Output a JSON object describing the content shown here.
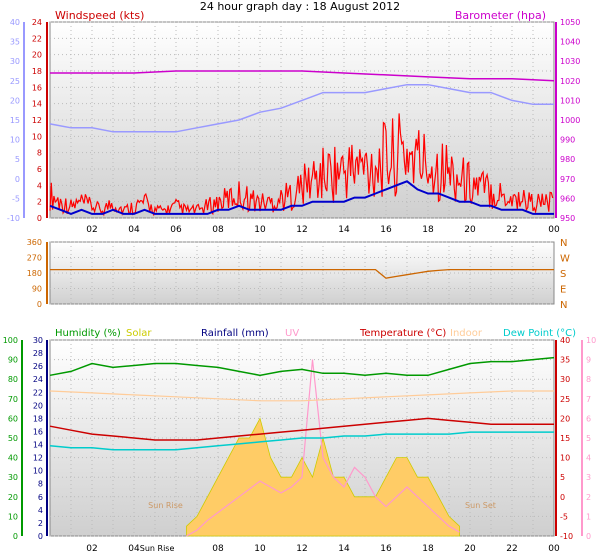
{
  "title": "24 hour graph day : 18 August 2012",
  "colors": {
    "windspeed": "#ff0000",
    "windavg": "#0000cc",
    "barometer": "#cc00cc",
    "baro_axis": "#cc00cc",
    "wind_axis": "#cc0000",
    "left_axis": "#9999ff",
    "direction": "#cc6600",
    "humidity": "#009900",
    "solar": "#cccc00",
    "rainfall": "#000080",
    "uv": "#ff99cc",
    "temperature": "#cc0000",
    "indoor": "#ffcc99",
    "dewpoint": "#00cccc",
    "solar_fill": "#ffcc66"
  },
  "x_ticks": [
    "02",
    "04",
    "06",
    "08",
    "10",
    "12",
    "14",
    "16",
    "18",
    "20",
    "22",
    "00"
  ],
  "chart_data": [
    {
      "type": "line",
      "title": "",
      "left_label": "Windspeed (kts)",
      "right_label": "Barometer (hpa)",
      "xlabel": "",
      "x_range": [
        0,
        24
      ],
      "y_left_ticks": [
        0,
        2,
        4,
        6,
        8,
        10,
        12,
        14,
        16,
        18,
        20,
        22,
        24
      ],
      "y_outer_ticks": [
        -10,
        -5,
        0,
        5,
        10,
        15,
        20,
        25,
        30,
        35,
        40
      ],
      "y_right_ticks": [
        950,
        960,
        970,
        980,
        990,
        1000,
        1010,
        1020,
        1030,
        1040,
        1050
      ],
      "ylim_wind": [
        0,
        24
      ],
      "ylim_baro": [
        950,
        1050
      ],
      "grid": true,
      "series": [
        {
          "name": "Windspeed (kts)",
          "x": [
            0,
            0.5,
            1,
            1.5,
            2,
            2.5,
            3,
            3.5,
            4,
            4.5,
            5,
            5.5,
            6,
            6.5,
            7,
            7.5,
            8,
            8.5,
            9,
            9.5,
            10,
            10.5,
            11,
            11.5,
            12,
            12.5,
            13,
            13.5,
            14,
            14.5,
            15,
            15.5,
            16,
            16.5,
            17,
            17.5,
            18,
            18.5,
            19,
            19.5,
            20,
            20.5,
            21,
            21.5,
            22,
            22.5,
            23,
            23.5,
            24
          ],
          "values": [
            3,
            2,
            1.5,
            2,
            1.5,
            1,
            2,
            1,
            1.5,
            2,
            1,
            1,
            1.5,
            1,
            1,
            1.5,
            2,
            2.5,
            3,
            2.5,
            2,
            2,
            2.5,
            3,
            4,
            5,
            5.5,
            6,
            6,
            6.5,
            6.5,
            7,
            7.5,
            8,
            8.5,
            7.5,
            7,
            6.5,
            6,
            5,
            4.5,
            4,
            3.5,
            3,
            2.5,
            2.5,
            2,
            2,
            2
          ]
        },
        {
          "name": "Windspeed avg",
          "x": [
            0,
            0.5,
            1,
            1.5,
            2,
            2.5,
            3,
            3.5,
            4,
            4.5,
            5,
            5.5,
            6,
            6.5,
            7,
            7.5,
            8,
            8.5,
            9,
            9.5,
            10,
            10.5,
            11,
            11.5,
            12,
            12.5,
            13,
            13.5,
            14,
            14.5,
            15,
            15.5,
            16,
            16.5,
            17,
            17.5,
            18,
            18.5,
            19,
            19.5,
            20,
            20.5,
            21,
            21.5,
            22,
            22.5,
            23,
            23.5,
            24
          ],
          "values": [
            1.5,
            1,
            0.5,
            1,
            0.5,
            0.5,
            1,
            0.5,
            0.5,
            1,
            0.5,
            0.5,
            0.5,
            0.5,
            0.5,
            0.5,
            1,
            1,
            1.5,
            1,
            1,
            1,
            1,
            1.5,
            1.5,
            2,
            2,
            2,
            2,
            2.5,
            2.5,
            3,
            3.5,
            4,
            4.5,
            3.5,
            3,
            3,
            2.5,
            2,
            2,
            1.5,
            1.5,
            1,
            1,
            1,
            0.5,
            0.5,
            0.5
          ]
        },
        {
          "name": "Barometer (hpa)",
          "x": [
            0,
            2,
            4,
            6,
            8,
            10,
            12,
            14,
            16,
            18,
            20,
            22,
            24
          ],
          "values": [
            1024,
            1024,
            1024,
            1025,
            1025,
            1025,
            1025,
            1024,
            1023,
            1022,
            1021,
            1021,
            1020
          ]
        },
        {
          "name": "Left axis trace",
          "x": [
            0,
            1,
            2,
            3,
            4,
            5,
            6,
            7,
            8,
            9,
            10,
            11,
            12,
            13,
            14,
            15,
            16,
            17,
            18,
            19,
            20,
            21,
            22,
            23,
            24
          ],
          "values": [
            14,
            13,
            13,
            12,
            12,
            12,
            12,
            13,
            14,
            15,
            17,
            18,
            20,
            22,
            22,
            22,
            23,
            24,
            24,
            23,
            22,
            22,
            20,
            19,
            19
          ]
        }
      ]
    },
    {
      "type": "line",
      "title": "",
      "xlabel": "",
      "x_range": [
        0,
        24
      ],
      "y_left_ticks": [
        0,
        90,
        180,
        270,
        360
      ],
      "right_labels": [
        "N",
        "W",
        "S",
        "E",
        "N"
      ],
      "ylim": [
        0,
        360
      ],
      "grid": true,
      "series": [
        {
          "name": "Wind direction",
          "x": [
            0,
            2,
            4,
            6,
            8,
            10,
            12,
            14,
            15.5,
            16,
            16.5,
            17,
            17.5,
            18,
            18.5,
            19,
            20,
            22,
            24
          ],
          "values": [
            200,
            200,
            200,
            200,
            200,
            200,
            200,
            200,
            200,
            150,
            160,
            170,
            180,
            190,
            195,
            200,
            200,
            200,
            200
          ]
        }
      ]
    },
    {
      "type": "line",
      "title": "",
      "xlabel": "",
      "x_range": [
        0,
        24
      ],
      "legend": [
        "Humidity (%)",
        "Solar",
        "Rainfall (mm)",
        "UV",
        "Temperature (°C)",
        "Indoor",
        "Dew Point (°C)"
      ],
      "y_humidity_ticks": [
        0,
        10,
        20,
        30,
        40,
        50,
        60,
        70,
        80,
        90,
        100
      ],
      "y_rain_ticks": [
        0,
        2,
        4,
        6,
        8,
        10,
        12,
        14,
        16,
        18,
        20,
        22,
        24,
        26,
        28,
        30
      ],
      "y_temp_ticks": [
        -10,
        -5,
        0,
        5,
        10,
        15,
        20,
        25,
        30,
        35,
        40
      ],
      "y_uv_ticks": [
        0,
        1,
        2,
        3,
        4,
        5,
        6,
        7,
        8,
        9,
        10
      ],
      "annotations": [
        "Sun Rise",
        "Sun Set",
        "Sun Rise"
      ],
      "grid": true,
      "series": [
        {
          "name": "Humidity (%)",
          "x": [
            0,
            1,
            2,
            3,
            4,
            5,
            6,
            7,
            8,
            9,
            10,
            11,
            12,
            13,
            14,
            15,
            16,
            17,
            18,
            19,
            20,
            21,
            22,
            23,
            24
          ],
          "values": [
            82,
            84,
            88,
            86,
            87,
            88,
            88,
            87,
            86,
            84,
            82,
            84,
            85,
            83,
            83,
            82,
            83,
            82,
            82,
            85,
            88,
            89,
            89,
            90,
            91
          ]
        },
        {
          "name": "Temperature (°C)",
          "x": [
            0,
            1,
            2,
            3,
            4,
            5,
            6,
            7,
            8,
            9,
            10,
            11,
            12,
            13,
            14,
            15,
            16,
            17,
            18,
            19,
            20,
            21,
            22,
            23,
            24
          ],
          "values": [
            18,
            17,
            16,
            15.5,
            15,
            14.5,
            14.5,
            14.5,
            15,
            15.5,
            16,
            16.5,
            17,
            17.5,
            18,
            18.5,
            19,
            19.5,
            20,
            19.5,
            19,
            18.5,
            18.5,
            18.5,
            18.5
          ]
        },
        {
          "name": "Indoor",
          "x": [
            0,
            2,
            4,
            6,
            8,
            10,
            12,
            14,
            16,
            18,
            20,
            22,
            24
          ],
          "values": [
            27,
            26.5,
            26,
            25.5,
            25,
            24.5,
            24.5,
            25,
            25.5,
            26,
            26.5,
            27,
            27
          ]
        },
        {
          "name": "Dew Point (°C)",
          "x": [
            0,
            1,
            2,
            3,
            4,
            5,
            6,
            7,
            8,
            9,
            10,
            11,
            12,
            13,
            14,
            15,
            16,
            17,
            18,
            19,
            20,
            21,
            22,
            23,
            24
          ],
          "values": [
            13,
            12.5,
            12.5,
            12,
            12,
            12,
            12,
            12.5,
            13,
            13.5,
            14,
            14.5,
            15,
            15,
            15.5,
            15.5,
            16,
            16,
            16,
            16,
            16.5,
            16.5,
            16.5,
            16.5,
            16.5
          ]
        },
        {
          "name": "Solar",
          "x": [
            6.5,
            7,
            7.5,
            8,
            8.5,
            9,
            9.5,
            10,
            10.5,
            11,
            11.5,
            12,
            12.5,
            13,
            13.5,
            14,
            14.5,
            15,
            15.5,
            16,
            16.5,
            17,
            17.5,
            18,
            18.5,
            19,
            19.5
          ],
          "values": [
            0.5,
            1,
            2,
            3,
            4,
            5,
            5,
            6,
            4,
            3,
            3,
            4,
            3,
            5,
            3,
            3,
            2,
            2,
            2,
            3,
            4,
            4,
            3,
            3,
            2,
            1,
            0.5
          ]
        },
        {
          "name": "UV",
          "x": [
            6.5,
            7,
            7.5,
            8,
            8.5,
            9,
            9.5,
            10,
            10.5,
            11,
            11.5,
            12,
            12.5,
            13,
            13.5,
            14,
            14.5,
            15,
            15.5,
            16,
            16.5,
            17,
            17.5,
            18,
            18.5,
            19,
            19.5
          ],
          "values": [
            0,
            0.3,
            0.8,
            1.2,
            1.6,
            2,
            2.4,
            2.8,
            2.5,
            2.2,
            2.5,
            3,
            9,
            4,
            3,
            2.5,
            3.5,
            3,
            2,
            1.5,
            2,
            2.5,
            2,
            1.5,
            1,
            0.5,
            0.2
          ]
        }
      ]
    }
  ]
}
